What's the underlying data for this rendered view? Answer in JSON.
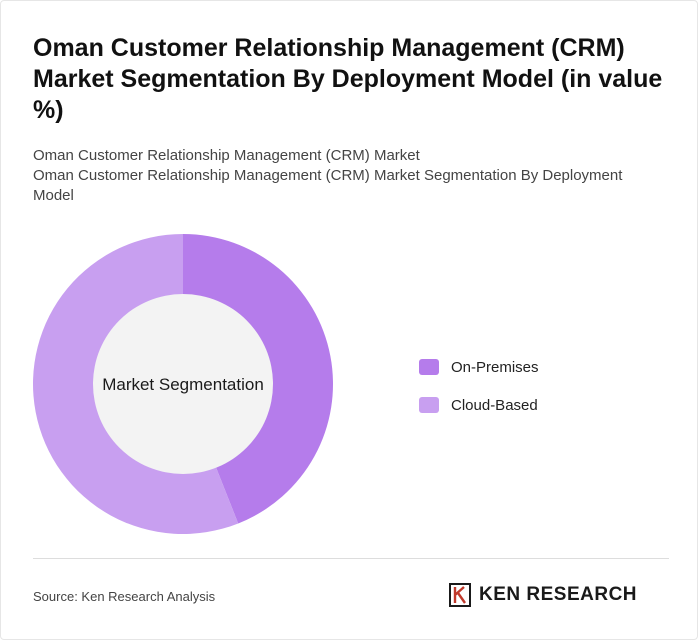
{
  "header": {
    "title": "Oman Customer Relationship Management (CRM) Market Segmentation By Deployment Model (in value %)",
    "subtitle_line1": "Oman Customer Relationship Management (CRM) Market",
    "subtitle_line2": "Oman Customer Relationship Management (CRM) Market Segmentation By Deployment Model"
  },
  "chart_data": {
    "type": "pie",
    "center_label": "Market Segmentation",
    "categories": [
      "On-Premises",
      "Cloud-Based"
    ],
    "values": [
      44,
      56
    ],
    "colors": [
      "#b57ceb",
      "#c89ff0"
    ],
    "legend_position": "right"
  },
  "footer": {
    "source": "Source: Ken Research Analysis",
    "brand": "KEN RESEARCH"
  },
  "colors": {
    "hole": "#f3f3f3",
    "divider": "#dddddd"
  },
  "icons": {
    "brand_logo": "ken-research-logo-icon"
  }
}
